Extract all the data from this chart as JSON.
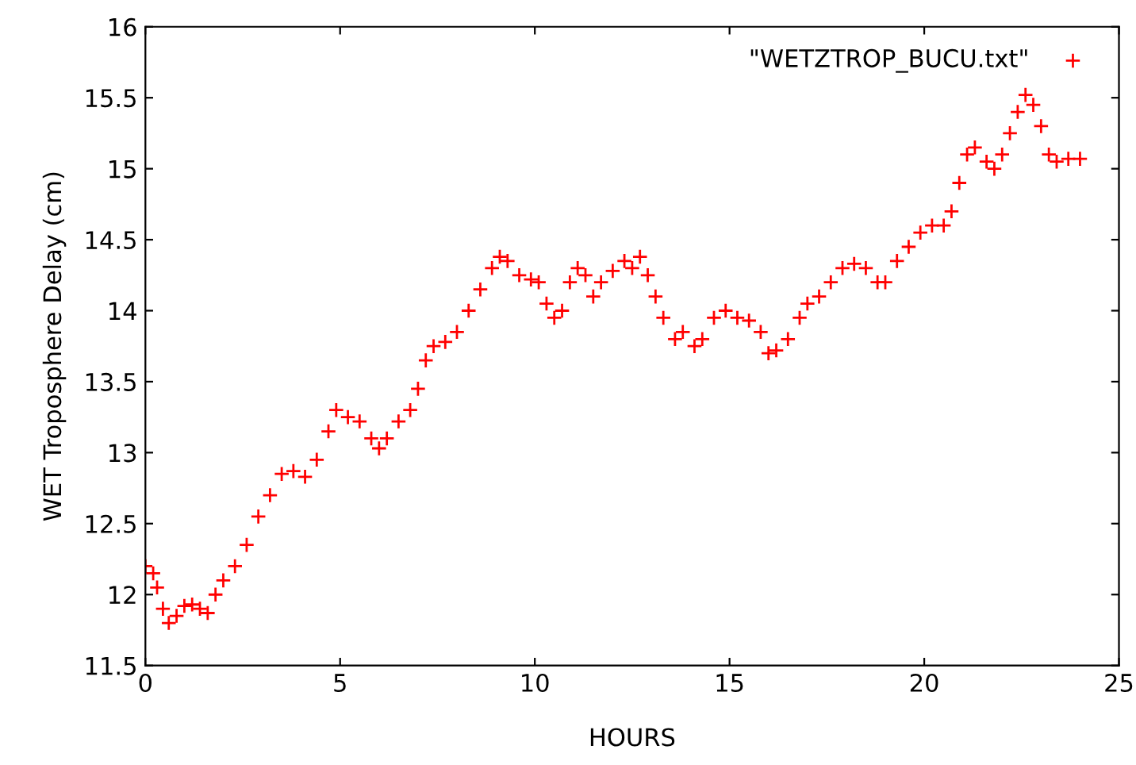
{
  "chart_data": {
    "type": "scatter",
    "xlabel": "HOURS",
    "ylabel": "WET Troposphere Delay (cm)",
    "xlim": [
      0,
      25
    ],
    "ylim": [
      11.5,
      16
    ],
    "xticks": [
      0,
      5,
      10,
      15,
      20,
      25
    ],
    "yticks": [
      11.5,
      12,
      12.5,
      13,
      13.5,
      14,
      14.5,
      15,
      15.5,
      16
    ],
    "grid": false,
    "legend": "top right",
    "marker": "cross",
    "series": [
      {
        "name": "\"WETZTROP_BUCU.txt\"",
        "color": "#ff0000",
        "x": [
          0.0,
          0.2,
          0.3,
          0.45,
          0.6,
          0.8,
          1.0,
          1.2,
          1.4,
          1.6,
          1.8,
          2.0,
          2.3,
          2.6,
          2.9,
          3.2,
          3.5,
          3.8,
          4.1,
          4.4,
          4.7,
          4.9,
          5.2,
          5.5,
          5.8,
          6.0,
          6.2,
          6.5,
          6.8,
          7.0,
          7.2,
          7.4,
          7.7,
          8.0,
          8.3,
          8.6,
          8.9,
          9.1,
          9.3,
          9.6,
          9.9,
          10.1,
          10.3,
          10.5,
          10.7,
          10.9,
          11.1,
          11.3,
          11.5,
          11.7,
          12.0,
          12.3,
          12.5,
          12.7,
          12.9,
          13.1,
          13.3,
          13.6,
          13.8,
          14.1,
          14.3,
          14.6,
          14.9,
          15.2,
          15.5,
          15.8,
          16.0,
          16.2,
          16.5,
          16.8,
          17.0,
          17.3,
          17.6,
          17.9,
          18.2,
          18.5,
          18.8,
          19.0,
          19.3,
          19.6,
          19.9,
          20.2,
          20.5,
          20.7,
          20.9,
          21.1,
          21.3,
          21.6,
          21.8,
          22.0,
          22.2,
          22.4,
          22.6,
          22.8,
          23.0,
          23.2,
          23.4,
          23.7,
          24.0
        ],
        "values": [
          12.2,
          12.15,
          12.05,
          11.9,
          11.8,
          11.85,
          11.92,
          11.93,
          11.9,
          11.87,
          12.0,
          12.1,
          12.2,
          12.35,
          12.55,
          12.7,
          12.85,
          12.87,
          12.83,
          12.95,
          13.15,
          13.3,
          13.25,
          13.22,
          13.1,
          13.03,
          13.1,
          13.22,
          13.3,
          13.45,
          13.65,
          13.75,
          13.78,
          13.85,
          14.0,
          14.15,
          14.3,
          14.38,
          14.35,
          14.25,
          14.22,
          14.2,
          14.05,
          13.95,
          14.0,
          14.2,
          14.3,
          14.25,
          14.1,
          14.2,
          14.28,
          14.35,
          14.3,
          14.38,
          14.25,
          14.1,
          13.95,
          13.8,
          13.85,
          13.75,
          13.8,
          13.95,
          14.0,
          13.95,
          13.93,
          13.85,
          13.7,
          13.72,
          13.8,
          13.95,
          14.05,
          14.1,
          14.2,
          14.3,
          14.33,
          14.3,
          14.2,
          14.2,
          14.35,
          14.45,
          14.55,
          14.6,
          14.6,
          14.7,
          14.9,
          15.1,
          15.15,
          15.05,
          15.0,
          15.1,
          15.25,
          15.4,
          15.52,
          15.45,
          15.3,
          15.1,
          15.05,
          15.07,
          15.07
        ]
      }
    ]
  }
}
